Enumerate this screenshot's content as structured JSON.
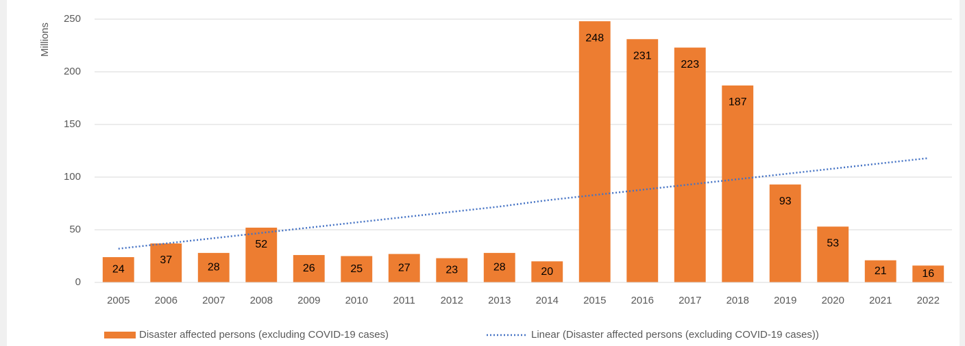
{
  "chart_data": {
    "type": "bar",
    "y_label": "Millions",
    "categories": [
      "2005",
      "2006",
      "2007",
      "2008",
      "2009",
      "2010",
      "2011",
      "2012",
      "2013",
      "2014",
      "2015",
      "2016",
      "2017",
      "2018",
      "2019",
      "2020",
      "2021",
      "2022"
    ],
    "series": [
      {
        "name": "Disaster affected persons (excluding COVID-19 cases)",
        "type": "bar",
        "color": "#ed7d31",
        "values": [
          24,
          37,
          28,
          52,
          26,
          25,
          27,
          23,
          28,
          20,
          248,
          231,
          223,
          187,
          93,
          53,
          21,
          16
        ]
      },
      {
        "name": "Linear (Disaster affected persons (excluding COVID-19 cases))",
        "type": "line",
        "color": "#4472c4",
        "values": [
          32,
          37,
          42,
          47,
          52,
          57,
          62,
          67,
          72,
          78,
          83,
          88,
          93,
          98,
          103,
          108,
          113,
          118
        ]
      }
    ],
    "ylim": [
      0,
      250
    ],
    "yticks": [
      0,
      50,
      100,
      150,
      200,
      250
    ],
    "grid": true,
    "legend": "bottom"
  }
}
